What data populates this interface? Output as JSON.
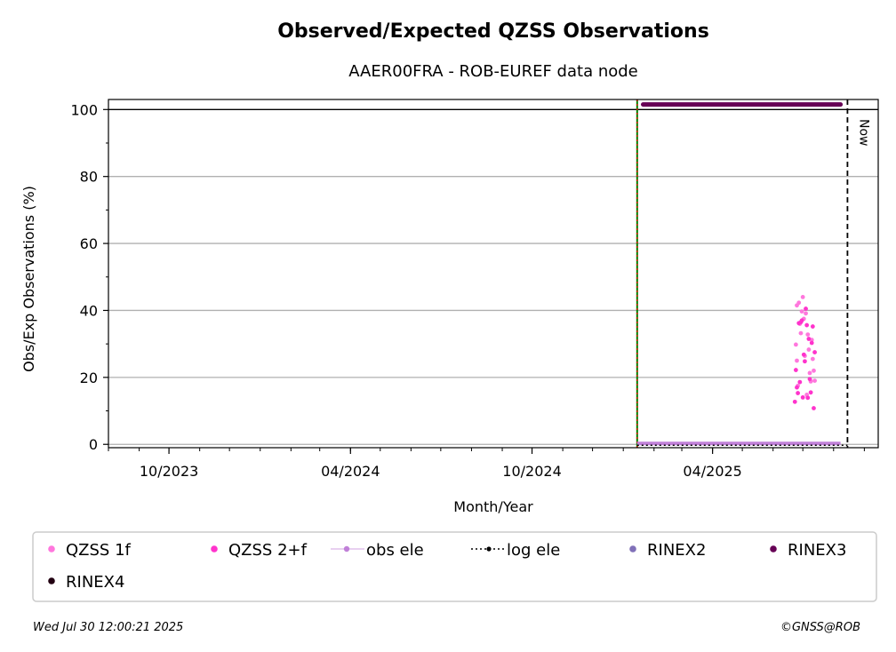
{
  "chart_data": {
    "type": "scatter",
    "title": "Observed/Expected QZSS Observations",
    "subtitle": "AAER00FRA - ROB-EUREF data node",
    "xlabel": "Month/Year",
    "ylabel": "Obs/Exp Observations (%)",
    "x_range": [
      "2023-08-01",
      "2025-09-15"
    ],
    "ylim": [
      -1,
      103
    ],
    "y_ticks": [
      0,
      20,
      40,
      60,
      80,
      100
    ],
    "x_ticks": [
      {
        "date": "2023-10-01",
        "label": "10/2023"
      },
      {
        "date": "2024-04-01",
        "label": "04/2024"
      },
      {
        "date": "2024-10-01",
        "label": "10/2024"
      },
      {
        "date": "2025-04-01",
        "label": "04/2025"
      }
    ],
    "grid": "horizontal",
    "vertical_lines": [
      {
        "date": "2025-01-15",
        "style": "dotted",
        "colors": [
          "#008000",
          "#ff0000"
        ]
      },
      {
        "date": "2025-08-15",
        "style": "dashed",
        "color": "#000000",
        "label": "Now"
      }
    ],
    "series": [
      {
        "name": "QZSS 1f",
        "color": "#ff77dd",
        "points": [
          [
            "2025-06-24",
            29.8
          ],
          [
            "2025-06-25",
            41.5
          ],
          [
            "2025-06-25",
            25.0
          ],
          [
            "2025-06-26",
            17.5
          ],
          [
            "2025-06-27",
            42.3
          ],
          [
            "2025-06-28",
            36.0
          ],
          [
            "2025-06-29",
            33.2
          ],
          [
            "2025-06-30",
            39.7
          ],
          [
            "2025-07-01",
            44.0
          ],
          [
            "2025-07-02",
            37.5
          ],
          [
            "2025-07-03",
            26.4
          ],
          [
            "2025-07-04",
            39.1
          ],
          [
            "2025-07-05",
            14.8
          ],
          [
            "2025-07-06",
            32.8
          ],
          [
            "2025-07-07",
            28.3
          ],
          [
            "2025-07-08",
            21.3
          ],
          [
            "2025-07-09",
            18.8
          ],
          [
            "2025-07-10",
            31.2
          ],
          [
            "2025-07-11",
            25.5
          ],
          [
            "2025-07-12",
            22.0
          ],
          [
            "2025-07-13",
            19.0
          ]
        ]
      },
      {
        "name": "QZSS 2+f",
        "color": "#ff33cc",
        "points": [
          [
            "2025-06-23",
            12.7
          ],
          [
            "2025-06-24",
            22.2
          ],
          [
            "2025-06-25",
            17.0
          ],
          [
            "2025-06-26",
            15.3
          ],
          [
            "2025-06-27",
            36.2
          ],
          [
            "2025-06-28",
            18.6
          ],
          [
            "2025-06-29",
            36.5
          ],
          [
            "2025-06-30",
            37.0
          ],
          [
            "2025-07-01",
            14.0
          ],
          [
            "2025-07-02",
            26.8
          ],
          [
            "2025-07-03",
            24.8
          ],
          [
            "2025-07-04",
            40.5
          ],
          [
            "2025-07-05",
            35.6
          ],
          [
            "2025-07-06",
            13.9
          ],
          [
            "2025-07-07",
            31.5
          ],
          [
            "2025-07-08",
            19.5
          ],
          [
            "2025-07-09",
            15.5
          ],
          [
            "2025-07-10",
            30.3
          ],
          [
            "2025-07-11",
            35.2
          ],
          [
            "2025-07-12",
            10.8
          ],
          [
            "2025-07-13",
            27.5
          ]
        ]
      },
      {
        "name": "obs ele",
        "color": "#c080d8",
        "style": "line-markers",
        "x_range": [
          "2025-01-15",
          "2025-08-08"
        ],
        "value": 0
      },
      {
        "name": "log ele",
        "color": "#000000",
        "style": "dotted-line",
        "x_range": [
          "2025-01-15",
          "2025-08-15"
        ],
        "value": 0
      },
      {
        "name": "RINEX2",
        "color": "#8070b8",
        "points": []
      },
      {
        "name": "RINEX3",
        "color": "#660055",
        "style": "daily-band",
        "x_range": [
          "2025-01-21",
          "2025-08-08"
        ],
        "value": 101.5
      },
      {
        "name": "RINEX4",
        "color": "#220011",
        "points": []
      }
    ],
    "legend_position": "bottom"
  },
  "footer": {
    "timestamp": "Wed Jul 30 12:00:21 2025",
    "credit": "©GNSS@ROB"
  }
}
